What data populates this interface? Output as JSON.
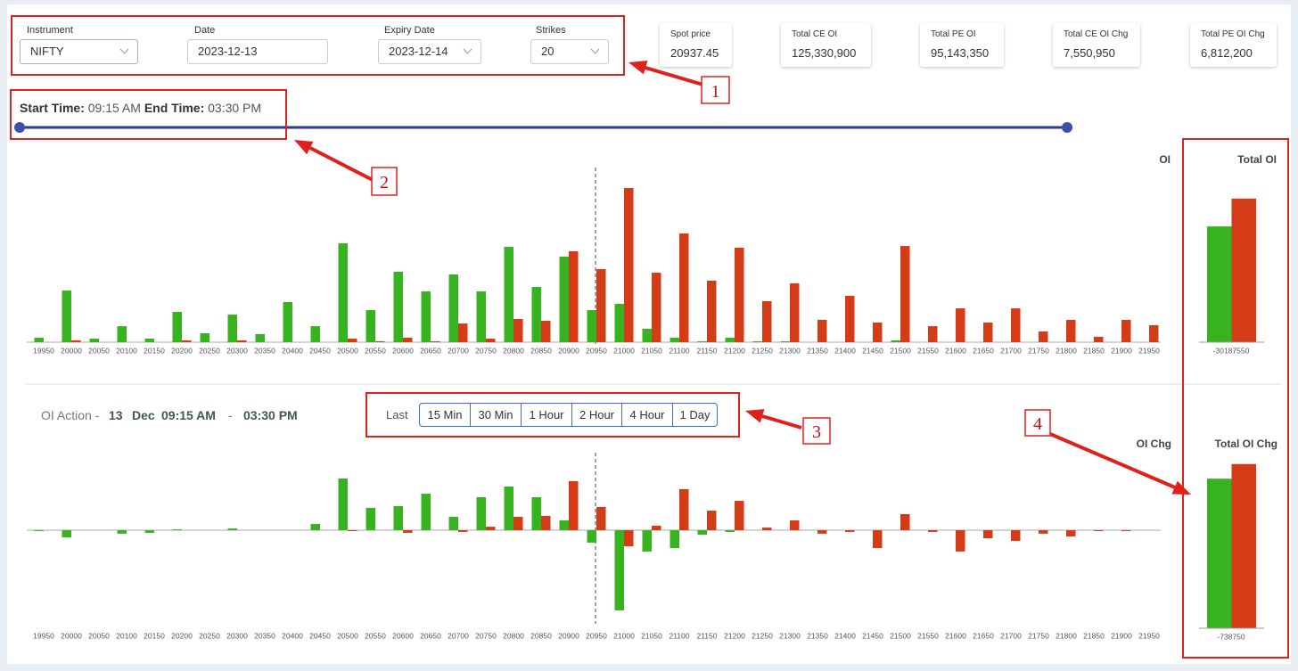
{
  "filters": {
    "instrument": {
      "label": "Instrument",
      "value": "NIFTY"
    },
    "date": {
      "label": "Date",
      "value": "2023-12-13"
    },
    "expiry": {
      "label": "Expiry Date",
      "value": "2023-12-14"
    },
    "strikes": {
      "label": "Strikes",
      "value": "20"
    }
  },
  "stats": [
    {
      "label": "Spot price",
      "value": "20937.45"
    },
    {
      "label": "Total CE OI",
      "value": "125,330,900"
    },
    {
      "label": "Total PE OI",
      "value": "95,143,350"
    },
    {
      "label": "Total CE OI Chg",
      "value": "7,550,950"
    },
    {
      "label": "Total PE OI Chg",
      "value": "6,812,200"
    }
  ],
  "time_range": {
    "start_label": "Start Time:",
    "start": "09:15 AM",
    "end_label": "End Time:",
    "end": "03:30 PM"
  },
  "oi_action": {
    "label": "OI Action -",
    "day": "13",
    "month": "Dec",
    "start": "09:15 AM",
    "separator": "-",
    "end": "03:30 PM",
    "last_label": "Last",
    "buttons": [
      "15 Min",
      "30 Min",
      "1 Hour",
      "2 Hour",
      "4 Hour",
      "1 Day"
    ]
  },
  "callouts": [
    "1",
    "2",
    "3",
    "4"
  ],
  "chart_data": [
    {
      "type": "bar",
      "title": "OI",
      "categories": [
        "19950",
        "20000",
        "20050",
        "20100",
        "20150",
        "20200",
        "20250",
        "20300",
        "20350",
        "20400",
        "20450",
        "20500",
        "20550",
        "20600",
        "20650",
        "20700",
        "20750",
        "20800",
        "20850",
        "20900",
        "20950",
        "21000",
        "21050",
        "21100",
        "21150",
        "21200",
        "21250",
        "21300",
        "21350",
        "21400",
        "21450",
        "21500",
        "21550",
        "21600",
        "21650",
        "21700",
        "21750",
        "21800",
        "21850",
        "21900",
        "21950"
      ],
      "series": [
        {
          "color": "#36b31e",
          "values": [
            465000,
            5390000,
            370000,
            1670000,
            370000,
            3160000,
            930000,
            2880000,
            840000,
            4190000,
            1670000,
            10320000,
            3350000,
            7350000,
            5300000,
            7070000,
            5300000,
            9950000,
            5770000,
            8930000,
            3350000,
            4000000,
            1400000,
            470000,
            90000,
            470000,
            90000,
            90000,
            0,
            0,
            0,
            190000,
            0,
            0,
            0,
            0,
            0,
            0,
            0,
            0,
            0
          ]
        },
        {
          "color": "#d33c17",
          "values": [
            0,
            190000,
            0,
            0,
            0,
            190000,
            0,
            190000,
            0,
            0,
            0,
            370000,
            90000,
            470000,
            90000,
            1950000,
            370000,
            2420000,
            2230000,
            9490000,
            7630000,
            16090000,
            7250000,
            11350000,
            6420000,
            9860000,
            4280000,
            6140000,
            2330000,
            4840000,
            2050000,
            10040000,
            1670000,
            3530000,
            2050000,
            3530000,
            1120000,
            2330000,
            560000,
            2330000,
            1770000
          ]
        }
      ],
      "ylim": [
        0,
        18000000
      ]
    },
    {
      "type": "bar",
      "title": "OI Chg",
      "categories": [
        "19950",
        "20000",
        "20050",
        "20100",
        "20150",
        "20200",
        "20250",
        "20300",
        "20350",
        "20400",
        "20450",
        "20500",
        "20550",
        "20600",
        "20650",
        "20700",
        "20750",
        "20800",
        "20850",
        "20900",
        "20950",
        "21000",
        "21050",
        "21100",
        "21150",
        "21200",
        "21250",
        "21300",
        "21350",
        "21400",
        "21450",
        "21500",
        "21550",
        "21600",
        "21650",
        "21700",
        "21750",
        "21800",
        "21850",
        "21900",
        "21950"
      ],
      "series": [
        {
          "color": "#36b31e",
          "values": [
            -50000,
            -410000,
            0,
            -200000,
            -150000,
            50000,
            0,
            100000,
            0,
            0,
            360000,
            2960000,
            1280000,
            1380000,
            2090000,
            770000,
            1890000,
            2500000,
            1890000,
            560000,
            -710000,
            -4590000,
            -1220000,
            -1020000,
            -260000,
            -100000,
            0,
            0,
            0,
            0,
            0,
            0,
            0,
            0,
            0,
            0,
            0,
            0,
            0,
            0,
            0
          ]
        },
        {
          "color": "#d33c17",
          "values": [
            0,
            0,
            0,
            0,
            0,
            0,
            0,
            0,
            0,
            0,
            0,
            -50000,
            0,
            -150000,
            0,
            -100000,
            200000,
            770000,
            820000,
            2810000,
            1330000,
            -920000,
            260000,
            2350000,
            1120000,
            1680000,
            150000,
            560000,
            -200000,
            -100000,
            -1020000,
            920000,
            -100000,
            -1220000,
            -460000,
            -610000,
            -200000,
            -360000,
            -50000,
            -50000,
            0
          ]
        }
      ],
      "ylim": [
        -5000000,
        4000000
      ]
    },
    {
      "type": "bar",
      "title": "Total OI",
      "values": [
        95143350,
        125330900
      ],
      "colors": [
        "#36b31e",
        "#d33c17"
      ],
      "ylim": [
        -30187550,
        157000000
      ],
      "yticks": [
        -30187550
      ]
    },
    {
      "type": "bar",
      "title": "Total OI Chg",
      "values": [
        6812200,
        7550950
      ],
      "colors": [
        "#36b31e",
        "#d33c17"
      ],
      "ylim": [
        -738750,
        8260000
      ],
      "yticks": [
        -738750
      ]
    }
  ]
}
